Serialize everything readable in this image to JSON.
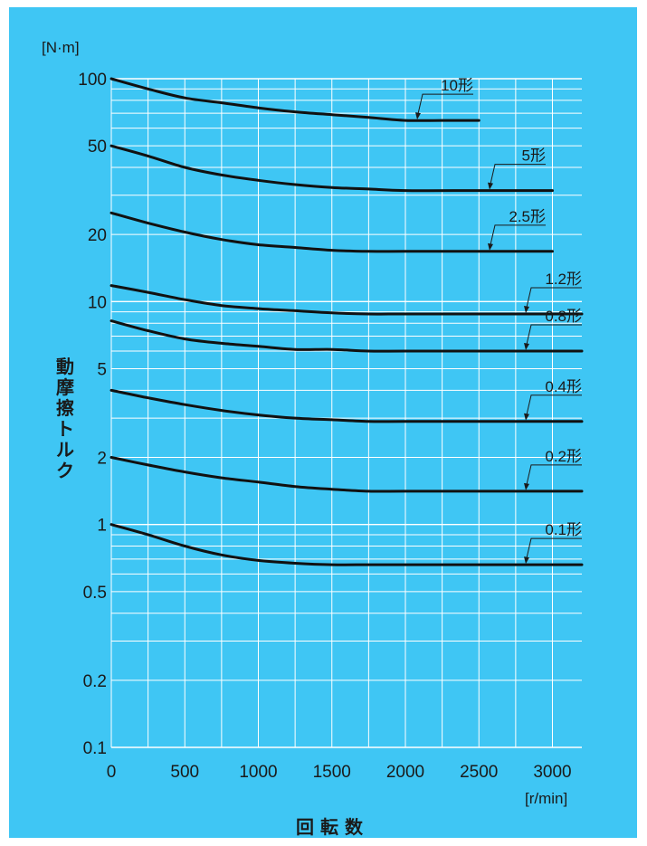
{
  "chart_data": {
    "type": "line",
    "title": "",
    "ylabel": "動摩擦トルク",
    "xlabel": "回 転 数",
    "x_unit": "[r/min]",
    "y_unit": "[N·m]",
    "y_scale": "log",
    "xlim": [
      0,
      3200
    ],
    "ylim": [
      0.1,
      100
    ],
    "x_ticks": [
      0,
      500,
      1000,
      1500,
      2000,
      2500,
      3000
    ],
    "x_tick_labels": [
      "0",
      "500",
      "1000",
      "1500",
      "2000",
      "2500",
      "3000"
    ],
    "y_ticks": [
      100,
      50,
      20,
      10,
      5,
      2,
      1,
      0.5,
      0.2,
      0.1
    ],
    "y_tick_labels": [
      "100",
      "50",
      "20",
      "10",
      "5",
      "2",
      "1",
      "0.5",
      "0.2",
      "0.1"
    ],
    "grid": true,
    "colors": {
      "background": "#3fc6f4",
      "grid": "#ffffff",
      "line": "#111111"
    },
    "series": [
      {
        "name": "10形",
        "x": [
          0,
          250,
          500,
          750,
          1000,
          1250,
          1500,
          1750,
          2000,
          2250,
          2500
        ],
        "values": [
          100,
          90,
          82,
          78,
          74,
          71,
          69,
          67,
          65,
          65,
          65
        ]
      },
      {
        "name": "5形",
        "x": [
          0,
          250,
          500,
          750,
          1000,
          1250,
          1500,
          1750,
          2000,
          2500,
          3000
        ],
        "values": [
          50,
          45,
          40,
          37,
          35,
          33.5,
          32.5,
          32,
          31.5,
          31.5,
          31.5
        ]
      },
      {
        "name": "2.5形",
        "x": [
          0,
          250,
          500,
          750,
          1000,
          1250,
          1500,
          1750,
          2000,
          2500,
          3000
        ],
        "values": [
          25,
          22.5,
          20.5,
          19,
          18,
          17.5,
          17,
          16.8,
          16.8,
          16.8,
          16.8
        ]
      },
      {
        "name": "1.2形",
        "x": [
          0,
          250,
          500,
          750,
          1000,
          1250,
          1500,
          1750,
          2000,
          2500,
          3200
        ],
        "values": [
          11.8,
          11,
          10.2,
          9.6,
          9.3,
          9.1,
          8.9,
          8.8,
          8.8,
          8.8,
          8.8
        ]
      },
      {
        "name": "0.8形",
        "x": [
          0,
          250,
          500,
          750,
          1000,
          1250,
          1500,
          1750,
          2000,
          2500,
          3200
        ],
        "values": [
          8.2,
          7.4,
          6.8,
          6.5,
          6.3,
          6.1,
          6.1,
          6.0,
          6.0,
          6.0,
          6.0
        ]
      },
      {
        "name": "0.4形",
        "x": [
          0,
          250,
          500,
          750,
          1000,
          1250,
          1500,
          1750,
          2000,
          2500,
          3200
        ],
        "values": [
          4.0,
          3.7,
          3.45,
          3.25,
          3.1,
          3.0,
          2.95,
          2.9,
          2.9,
          2.9,
          2.9
        ]
      },
      {
        "name": "0.2形",
        "x": [
          0,
          250,
          500,
          750,
          1000,
          1250,
          1500,
          1750,
          2000,
          2500,
          3200
        ],
        "values": [
          2.0,
          1.85,
          1.72,
          1.62,
          1.55,
          1.48,
          1.44,
          1.41,
          1.41,
          1.41,
          1.41
        ]
      },
      {
        "name": "0.1形",
        "x": [
          0,
          250,
          500,
          750,
          1000,
          1250,
          1500,
          1750,
          2000,
          2500,
          3200
        ],
        "values": [
          1.0,
          0.9,
          0.8,
          0.73,
          0.69,
          0.67,
          0.66,
          0.66,
          0.66,
          0.66,
          0.66
        ]
      }
    ]
  }
}
